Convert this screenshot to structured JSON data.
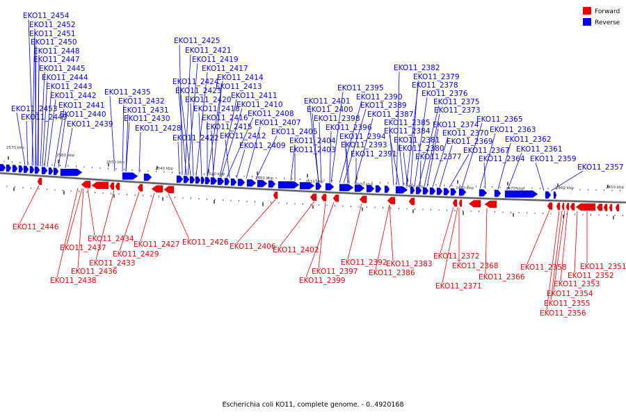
{
  "caption": "Escherichia coli KO11, complete genome. - 0..4920168",
  "legend": [
    {
      "label": "Forward",
      "color": "#ee0000"
    },
    {
      "label": "Reverse",
      "color": "#0000ee"
    }
  ],
  "colors": {
    "forward": "#ee0000",
    "reverse": "#0000ee",
    "backbone": "#555555"
  },
  "axis_ticks": [
    "2570 kbp",
    "2560 kbp",
    "2550 kbp",
    "2540 kbp",
    "2530 kbp",
    "2520 kbp",
    "2510 kbp",
    "2500 kbp",
    "2490 kbp",
    "2480 kbp",
    "2470 kbp",
    "2460 kbp",
    "2450 kbp"
  ],
  "reverse_labels": [
    "EKO11_2454",
    "EKO11_2452",
    "EKO11_2451",
    "EKO11_2450",
    "EKO11_2448",
    "EKO11_2447",
    "EKO11_2445",
    "EKO11_2444",
    "EKO11_2443",
    "EKO11_2442",
    "EKO11_2441",
    "EKO11_2440",
    "EKO11_2439",
    "EKO11_2453",
    "EKO11_2449",
    "EKO11_2435",
    "EKO11_2432",
    "EKO11_2431",
    "EKO11_2430",
    "EKO11_2428",
    "EKO11_2425",
    "EKO11_2421",
    "EKO11_2419",
    "EKO11_2417",
    "EKO11_2414",
    "EKO11_2424",
    "EKO11_2413",
    "EKO11_2423",
    "EKO11_2411",
    "EKO11_2420",
    "EKO11_2410",
    "EKO11_2418",
    "EKO11_2408",
    "EKO11_2416",
    "EKO11_2407",
    "EKO11_2415",
    "EKO11_2405",
    "EKO11_2422",
    "EKO11_2412",
    "EKO11_2409",
    "EKO11_2404",
    "EKO11_2403",
    "EKO11_2401",
    "EKO11_2400",
    "EKO11_2398",
    "EKO11_2395",
    "EKO11_2390",
    "EKO11_2389",
    "EKO11_2387",
    "EKO11_2396",
    "EKO11_2394",
    "EKO11_2393",
    "EKO11_2391",
    "EKO11_2382",
    "EKO11_2379",
    "EKO11_2378",
    "EKO11_2376",
    "EKO11_2375",
    "EKO11_2373",
    "EKO11_2385",
    "EKO11_2384",
    "EKO11_2381",
    "EKO11_2380",
    "EKO11_2374",
    "EKO11_2370",
    "EKO11_2369",
    "EKO11_2377",
    "EKO11_2367",
    "EKO11_2365",
    "EKO11_2363",
    "EKO11_2364",
    "EKO11_2362",
    "EKO11_2361",
    "EKO11_2359",
    "EKO11_2357"
  ],
  "forward_labels": [
    "EKO11_2446",
    "EKO11_2434",
    "EKO11_2437",
    "EKO11_2429",
    "EKO11_2427",
    "EKO11_2426",
    "EKO11_2433",
    "EKO11_2436",
    "EKO11_2438",
    "EKO11_2406",
    "EKO11_2402",
    "EKO11_2397",
    "EKO11_2399",
    "EKO11_2392",
    "EKO11_2383",
    "EKO11_2386",
    "EKO11_2372",
    "EKO11_2368",
    "EKO11_2371",
    "EKO11_2366",
    "EKO11_2358",
    "EKO11_2351",
    "EKO11_2352",
    "EKO11_2353",
    "EKO11_2354",
    "EKO11_2355",
    "EKO11_2356"
  ]
}
